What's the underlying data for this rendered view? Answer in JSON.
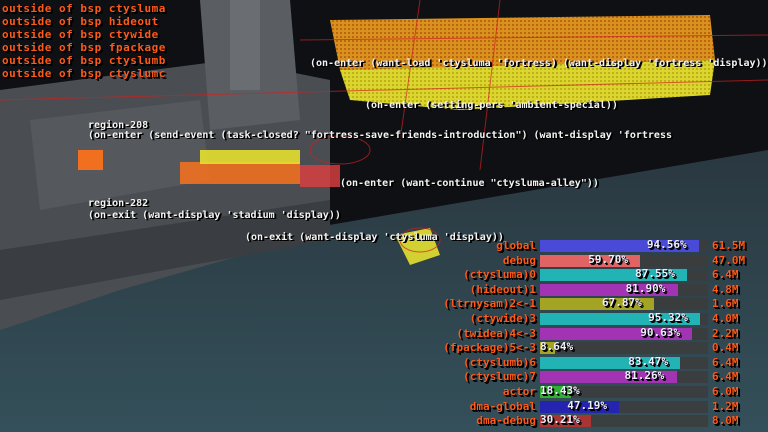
{
  "bsp_messages": [
    "outside of bsp ctysluma",
    "outside of bsp hideout",
    "outside of bsp ctywide",
    "outside of bsp fpackage",
    "outside of bsp ctyslumb",
    "outside of bsp ctyslumc"
  ],
  "region_debug": [
    "region-208",
    "(on-enter (send-event (task-closed? \"fortress-save-friends-introduction\") (want-display 'fortress",
    "(on-enter (want-load 'ctysluma 'fortress) (want-display 'fortress 'display))",
    "region-282",
    "(on-exit (want-display 'stadium 'display))",
    "(on-exit (want-display 'ctysluma 'display))",
    "(on-enter (want-continue \"ctysluma-alley\"))",
    "(on-enter (setting-pers 'ambient-special))"
  ],
  "memory_usage": [
    {
      "label": "global",
      "percent": 94.56,
      "size": "61.5M",
      "color": "#4a4ad8"
    },
    {
      "label": "debug",
      "percent": 59.7,
      "size": "47.0M",
      "color": "#e06464"
    },
    {
      "label": "(ctysluma)0",
      "percent": 87.55,
      "size": "6.4M",
      "color": "#22b4b4"
    },
    {
      "label": "(hideout)1",
      "percent": 81.9,
      "size": "4.8M",
      "color": "#a234b4"
    },
    {
      "label": "(ltrnysam)2<-1",
      "percent": 67.87,
      "size": "1.6M",
      "color": "#a4a424"
    },
    {
      "label": "(ctywide)3",
      "percent": 95.32,
      "size": "4.0M",
      "color": "#22b4b4"
    },
    {
      "label": "(twidea)4<-3",
      "percent": 90.63,
      "size": "2.2M",
      "color": "#a234b4"
    },
    {
      "label": "(fpackage)5<-3",
      "percent": 8.64,
      "size": "0.4M",
      "color": "#a4a424"
    },
    {
      "label": "(ctyslumb)6",
      "percent": 83.47,
      "size": "6.4M",
      "color": "#22b4b4"
    },
    {
      "label": "(ctyslumc)7",
      "percent": 81.26,
      "size": "6.4M",
      "color": "#a234b4"
    },
    {
      "label": "actor",
      "percent": 18.43,
      "size": "6.0M",
      "color": "#30b030"
    },
    {
      "label": "dma-global",
      "percent": 47.19,
      "size": "1.2M",
      "color": "#2424b0"
    },
    {
      "label": "dma-debug",
      "percent": 30.21,
      "size": "8.0M",
      "color": "#a83434"
    }
  ],
  "colors": {
    "debug_text": "#ff5a1a",
    "region_text": "#f4f4f4",
    "collision_box": "#e8e830"
  }
}
